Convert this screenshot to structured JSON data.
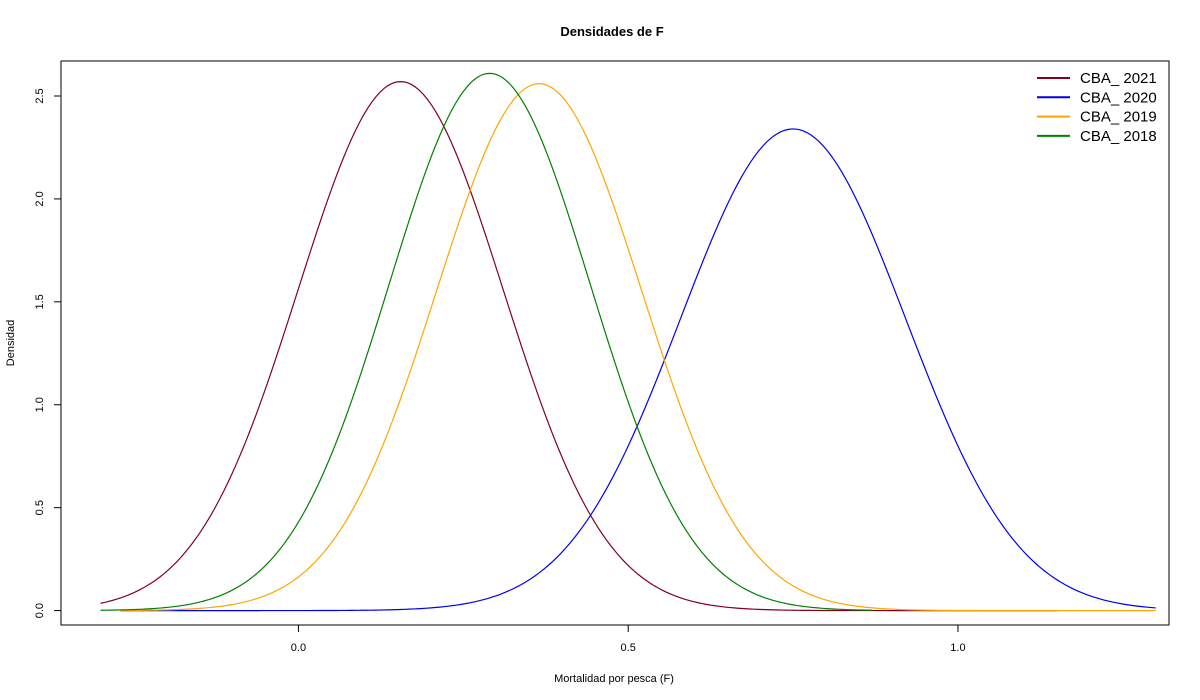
{
  "chart_data": {
    "type": "line",
    "title": "Densidades de F",
    "xlabel": "Mortalidad por pesca (F)",
    "ylabel": "Densidad",
    "xlim": [
      -0.36,
      1.32
    ],
    "ylim": [
      -0.07,
      2.67
    ],
    "x_ticks": [
      {
        "value": 0.0,
        "label": "0.0"
      },
      {
        "value": 0.5,
        "label": "0.5"
      },
      {
        "value": 1.0,
        "label": "1.0"
      }
    ],
    "y_ticks": [
      {
        "value": 0.0,
        "label": "0.0"
      },
      {
        "value": 0.5,
        "label": "0.5"
      },
      {
        "value": 1.0,
        "label": "1.0"
      },
      {
        "value": 1.5,
        "label": "1.5"
      },
      {
        "value": 2.0,
        "label": "2.0"
      },
      {
        "value": 2.5,
        "label": "2.5"
      }
    ],
    "legend_position": "top-right",
    "grid": false,
    "series": [
      {
        "name": "CBA_ 2021",
        "color": "#800020",
        "x_range": [
          -0.3,
          1.15
        ],
        "mean": 0.155,
        "sd": 0.1555,
        "peak": 2.57
      },
      {
        "name": "CBA_ 2020",
        "color": "#0000ee",
        "x_range": [
          -0.27,
          1.3
        ],
        "mean": 0.75,
        "sd": 0.1706,
        "peak": 2.34
      },
      {
        "name": "CBA_ 2019",
        "color": "#ffa500",
        "x_range": [
          -0.27,
          1.3
        ],
        "mean": 0.365,
        "sd": 0.1556,
        "peak": 2.56
      },
      {
        "name": "CBA_ 2018",
        "color": "#008000",
        "x_range": [
          -0.3,
          0.87
        ],
        "mean": 0.29,
        "sd": 0.1527,
        "peak": 2.61
      }
    ]
  }
}
